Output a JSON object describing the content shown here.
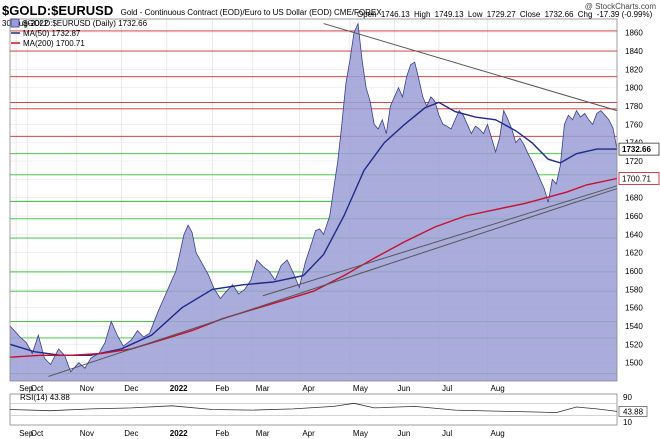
{
  "header": {
    "symbol": "$GOLD:$EURUSD",
    "description": "Gold - Continuous Contract (EOD)/Euro to US Dollar (EOD) CME/FOREX",
    "date": "30-Aug-2022",
    "open_label": "Open",
    "open": "1746.13",
    "high_label": "High",
    "high": "1749.13",
    "low_label": "Low",
    "low": "1729.27",
    "close_label": "Close",
    "close": "1732.66",
    "chg_label": "Chg",
    "chg": "-17.39 (-0.99%)",
    "watermark": "@ StockCharts.com"
  },
  "legend": {
    "price": "$GOLD:$EURUSD (Daily) 1732.66",
    "ma50": "MA(50) 1732.87",
    "ma200": "MA(200) 1700.71"
  },
  "rsi_label": "RSI(14) 43.88",
  "colors": {
    "area_fill": "#9b9ed6",
    "area_line": "#3a3f8f",
    "ma50": "#1f2a8c",
    "ma200": "#c8102e",
    "red_h": "#cc2a2a",
    "green_h": "#2fbf2f",
    "trend": "#555555"
  },
  "chart_data": {
    "type": "area",
    "x_range": [
      "2021-08-30",
      "2022-08-30"
    ],
    "ylim": [
      1480,
      1875
    ],
    "y_ticks": [
      1500,
      1520,
      1540,
      1560,
      1580,
      1600,
      1620,
      1640,
      1660,
      1680,
      1700,
      1720,
      1740,
      1760,
      1780,
      1800,
      1820,
      1840,
      1860
    ],
    "x_labels": [
      "Sep",
      "Oct",
      "Nov",
      "Dec",
      "2022",
      "Feb",
      "Mar",
      "Apr",
      "May",
      "Jun",
      "Jul",
      "Aug"
    ],
    "price_tags": [
      "1732.66",
      "1700.71"
    ],
    "rsi_ticks": [
      "90",
      "43.88",
      "10"
    ],
    "red_lines": [
      1862,
      1840,
      1812,
      1784,
      1777,
      1747
    ],
    "green_lines": [
      1728,
      1705,
      1676,
      1657,
      1636,
      1599,
      1578,
      1545,
      1527,
      1488
    ],
    "series": [
      {
        "name": "$GOLD:$EURUSD (Daily)",
        "kind": "area",
        "points": [
          [
            0,
            1540
          ],
          [
            5,
            1528
          ],
          [
            8,
            1522
          ],
          [
            11,
            1510
          ],
          [
            14,
            1530
          ],
          [
            17,
            1505
          ],
          [
            20,
            1498
          ],
          [
            24,
            1515
          ],
          [
            27,
            1508
          ],
          [
            30,
            1490
          ],
          [
            34,
            1500
          ],
          [
            37,
            1494
          ],
          [
            40,
            1505
          ],
          [
            44,
            1510
          ],
          [
            47,
            1522
          ],
          [
            50,
            1545
          ],
          [
            53,
            1530
          ],
          [
            56,
            1518
          ],
          [
            60,
            1525
          ],
          [
            63,
            1535
          ],
          [
            66,
            1528
          ],
          [
            69,
            1532
          ],
          [
            73,
            1555
          ],
          [
            76,
            1570
          ],
          [
            79,
            1585
          ],
          [
            82,
            1600
          ],
          [
            84,
            1620
          ],
          [
            86,
            1640
          ],
          [
            88,
            1650
          ],
          [
            90,
            1642
          ],
          [
            92,
            1620
          ],
          [
            95,
            1608
          ],
          [
            98,
            1596
          ],
          [
            101,
            1580
          ],
          [
            104,
            1570
          ],
          [
            107,
            1578
          ],
          [
            110,
            1585
          ],
          [
            113,
            1575
          ],
          [
            116,
            1580
          ],
          [
            119,
            1590
          ],
          [
            122,
            1612
          ],
          [
            125,
            1605
          ],
          [
            128,
            1600
          ],
          [
            131,
            1590
          ],
          [
            134,
            1606
          ],
          [
            137,
            1612
          ],
          [
            140,
            1598
          ],
          [
            143,
            1582
          ],
          [
            146,
            1610
          ],
          [
            149,
            1630
          ],
          [
            151,
            1644
          ],
          [
            153,
            1646
          ],
          [
            155,
            1640
          ],
          [
            158,
            1660
          ],
          [
            160,
            1690
          ],
          [
            162,
            1720
          ],
          [
            164,
            1760
          ],
          [
            166,
            1805
          ],
          [
            168,
            1830
          ],
          [
            170,
            1860
          ],
          [
            172,
            1870
          ],
          [
            174,
            1830
          ],
          [
            176,
            1800
          ],
          [
            178,
            1785
          ],
          [
            180,
            1760
          ],
          [
            182,
            1755
          ],
          [
            184,
            1765
          ],
          [
            186,
            1750
          ],
          [
            188,
            1780
          ],
          [
            190,
            1790
          ],
          [
            192,
            1800
          ],
          [
            194,
            1790
          ],
          [
            196,
            1812
          ],
          [
            198,
            1825
          ],
          [
            200,
            1828
          ],
          [
            202,
            1810
          ],
          [
            204,
            1790
          ],
          [
            206,
            1780
          ],
          [
            208,
            1790
          ],
          [
            210,
            1785
          ],
          [
            212,
            1770
          ],
          [
            214,
            1760
          ],
          [
            216,
            1758
          ],
          [
            218,
            1755
          ],
          [
            220,
            1765
          ],
          [
            222,
            1775
          ],
          [
            224,
            1770
          ],
          [
            226,
            1760
          ],
          [
            228,
            1750
          ],
          [
            230,
            1758
          ],
          [
            232,
            1755
          ],
          [
            234,
            1750
          ],
          [
            236,
            1760
          ],
          [
            238,
            1745
          ],
          [
            240,
            1730
          ],
          [
            242,
            1745
          ],
          [
            244,
            1775
          ],
          [
            246,
            1766
          ],
          [
            248,
            1755
          ],
          [
            250,
            1740
          ],
          [
            252,
            1745
          ],
          [
            254,
            1738
          ],
          [
            256,
            1728
          ],
          [
            258,
            1720
          ],
          [
            260,
            1710
          ],
          [
            262,
            1700
          ],
          [
            264,
            1690
          ],
          [
            266,
            1675
          ],
          [
            268,
            1700
          ],
          [
            270,
            1695
          ],
          [
            272,
            1715
          ],
          [
            274,
            1760
          ],
          [
            276,
            1770
          ],
          [
            278,
            1765
          ],
          [
            280,
            1775
          ],
          [
            282,
            1768
          ],
          [
            284,
            1772
          ],
          [
            286,
            1765
          ],
          [
            288,
            1760
          ],
          [
            290,
            1772
          ],
          [
            292,
            1775
          ],
          [
            294,
            1770
          ],
          [
            296,
            1765
          ],
          [
            298,
            1756
          ],
          [
            300,
            1733
          ]
        ]
      },
      {
        "name": "MA(50)",
        "kind": "line",
        "points": [
          [
            0,
            1520
          ],
          [
            12,
            1512
          ],
          [
            25,
            1508
          ],
          [
            40,
            1508
          ],
          [
            55,
            1515
          ],
          [
            70,
            1530
          ],
          [
            85,
            1560
          ],
          [
            100,
            1580
          ],
          [
            115,
            1585
          ],
          [
            130,
            1588
          ],
          [
            145,
            1595
          ],
          [
            155,
            1618
          ],
          [
            165,
            1660
          ],
          [
            175,
            1710
          ],
          [
            185,
            1740
          ],
          [
            195,
            1760
          ],
          [
            205,
            1778
          ],
          [
            212,
            1784
          ],
          [
            220,
            1774
          ],
          [
            230,
            1768
          ],
          [
            240,
            1765
          ],
          [
            250,
            1753
          ],
          [
            258,
            1740
          ],
          [
            266,
            1722
          ],
          [
            272,
            1718
          ],
          [
            280,
            1728
          ],
          [
            290,
            1733
          ],
          [
            300,
            1733
          ]
        ]
      },
      {
        "name": "MA(200)",
        "kind": "line",
        "points": [
          [
            0,
            1506
          ],
          [
            15,
            1508
          ],
          [
            30,
            1508
          ],
          [
            45,
            1510
          ],
          [
            60,
            1515
          ],
          [
            75,
            1525
          ],
          [
            90,
            1535
          ],
          [
            105,
            1548
          ],
          [
            120,
            1558
          ],
          [
            135,
            1568
          ],
          [
            150,
            1578
          ],
          [
            165,
            1595
          ],
          [
            180,
            1614
          ],
          [
            195,
            1632
          ],
          [
            210,
            1648
          ],
          [
            225,
            1660
          ],
          [
            240,
            1667
          ],
          [
            255,
            1674
          ],
          [
            265,
            1680
          ],
          [
            275,
            1686
          ],
          [
            285,
            1694
          ],
          [
            300,
            1701
          ]
        ]
      },
      {
        "kind": "trendline",
        "points": [
          [
            19,
            1485
          ],
          [
            300,
            1690
          ]
        ]
      },
      {
        "kind": "trendline",
        "points": [
          [
            125,
            1573
          ],
          [
            300,
            1693
          ]
        ]
      },
      {
        "kind": "trendline",
        "points": [
          [
            155,
            1870
          ],
          [
            300,
            1775
          ]
        ]
      }
    ],
    "rsi": {
      "value": 43.88,
      "ylim": [
        0,
        100
      ],
      "points": [
        [
          0,
          50
        ],
        [
          20,
          46
        ],
        [
          40,
          52
        ],
        [
          60,
          55
        ],
        [
          80,
          62
        ],
        [
          100,
          50
        ],
        [
          120,
          48
        ],
        [
          140,
          52
        ],
        [
          160,
          60
        ],
        [
          170,
          70
        ],
        [
          180,
          55
        ],
        [
          200,
          60
        ],
        [
          220,
          48
        ],
        [
          240,
          45
        ],
        [
          260,
          42
        ],
        [
          270,
          40
        ],
        [
          280,
          58
        ],
        [
          290,
          52
        ],
        [
          300,
          44
        ]
      ]
    }
  }
}
